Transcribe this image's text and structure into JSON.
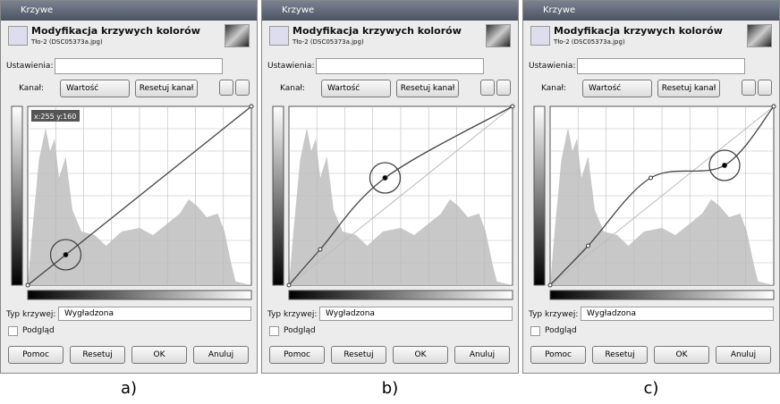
{
  "dialog": {
    "window_title": "Krzywe",
    "heading": "Modyfikacja krzywych kolorów",
    "subtitle": "Tło-2 (DSC05373a.jpg)",
    "presets_label": "Ustawienia:",
    "channel_label": "Kanał:",
    "channel_value": "Wartość",
    "reset_channel": "Resetuj kanał",
    "curve_type_label": "Typ krzywej:",
    "curve_type_value": "Wygładzona",
    "preview": "Podgląd",
    "buttons": [
      "Pomoc",
      "Resetuj",
      "OK",
      "Anuluj"
    ]
  },
  "panels": [
    {
      "caption": "a)",
      "tooltip": "x:255 y:160"
    },
    {
      "caption": "b)"
    },
    {
      "caption": "c)"
    }
  ]
}
